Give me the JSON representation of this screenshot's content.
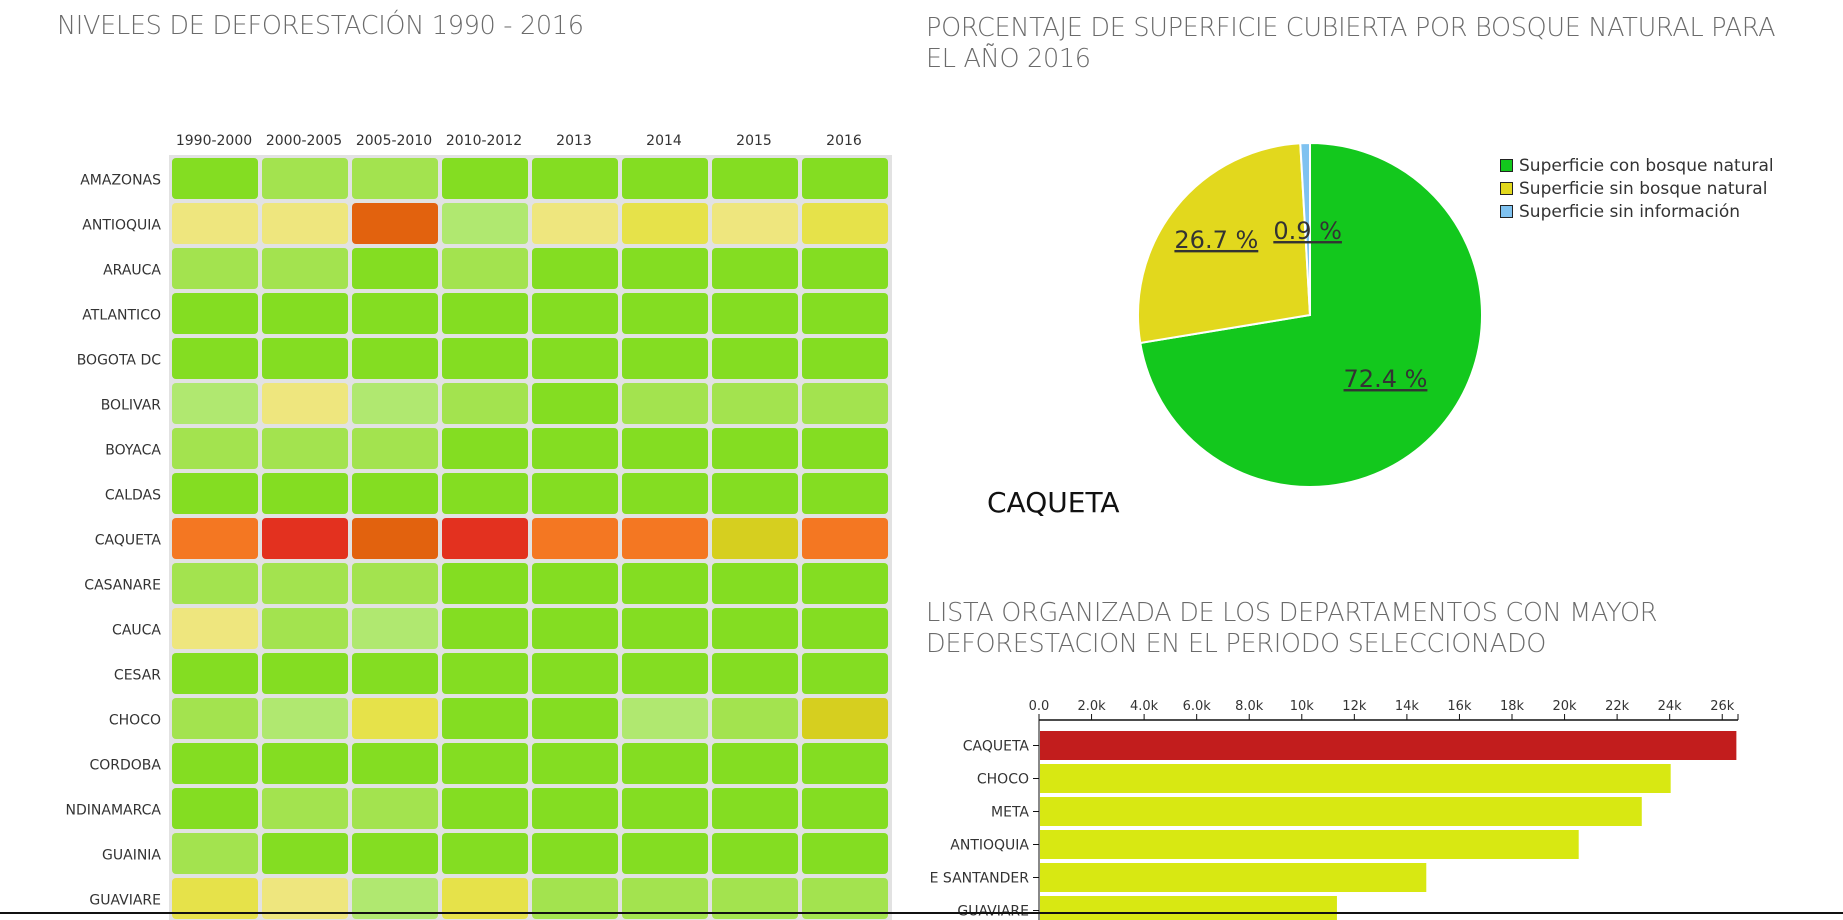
{
  "heatmap": {
    "title": "NIVELES DE DEFORESTACIÓN 1990 - 2016"
  },
  "pie": {
    "title": "PORCENTAJE DE SUPERFICIE CUBIERTA POR BOSQUE NATURAL PARA EL AÑO 2016",
    "department": "CAQUETA"
  },
  "bars": {
    "title": "LISTA ORGANIZADA DE LOS DEPARTAMENTOS CON MAYOR DEFORESTACION EN EL PERIODO SELECCIONADO"
  },
  "colors": {
    "green": "#84dd22",
    "light_green": "#a3e34f",
    "pale_green": "#b0e870",
    "pale_yellow": "#eee67e",
    "yellow": "#e6e24a",
    "olive_yellow": "#d6cf1f",
    "dark_orange": "#e2620e",
    "orange": "#f47722",
    "red": "#e3311f",
    "pie_green": "#13c81d",
    "pie_yellow": "#e2d81d",
    "pie_blue": "#7fc2f0",
    "bar_red": "#c21d1d",
    "bar_yellow": "#d8e812"
  },
  "chart_data": [
    {
      "type": "heatmap",
      "title": "NIVELES DE DEFORESTACIÓN 1990 - 2016",
      "columns": [
        "1990-2000",
        "2000-2005",
        "2005-2010",
        "2010-2012",
        "2013",
        "2014",
        "2015",
        "2016"
      ],
      "rows": [
        {
          "label": "AMAZONAS",
          "cells": [
            "green",
            "light_green",
            "light_green",
            "green",
            "green",
            "green",
            "green",
            "green"
          ]
        },
        {
          "label": "ANTIOQUIA",
          "cells": [
            "pale_yellow",
            "pale_yellow",
            "dark_orange",
            "pale_green",
            "pale_yellow",
            "yellow",
            "pale_yellow",
            "yellow"
          ]
        },
        {
          "label": "ARAUCA",
          "cells": [
            "light_green",
            "light_green",
            "green",
            "light_green",
            "green",
            "green",
            "green",
            "green"
          ]
        },
        {
          "label": "ATLANTICO",
          "cells": [
            "green",
            "green",
            "green",
            "green",
            "green",
            "green",
            "green",
            "green"
          ]
        },
        {
          "label": "BOGOTA DC",
          "cells": [
            "green",
            "green",
            "green",
            "green",
            "green",
            "green",
            "green",
            "green"
          ]
        },
        {
          "label": "BOLIVAR",
          "cells": [
            "pale_green",
            "pale_yellow",
            "pale_green",
            "light_green",
            "green",
            "light_green",
            "light_green",
            "light_green"
          ]
        },
        {
          "label": "BOYACA",
          "cells": [
            "light_green",
            "light_green",
            "light_green",
            "green",
            "green",
            "green",
            "green",
            "green"
          ]
        },
        {
          "label": "CALDAS",
          "cells": [
            "green",
            "green",
            "green",
            "green",
            "green",
            "green",
            "green",
            "green"
          ]
        },
        {
          "label": "CAQUETA",
          "cells": [
            "orange",
            "red",
            "dark_orange",
            "red",
            "orange",
            "orange",
            "olive_yellow",
            "orange"
          ]
        },
        {
          "label": "CASANARE",
          "cells": [
            "light_green",
            "light_green",
            "light_green",
            "green",
            "green",
            "green",
            "green",
            "green"
          ]
        },
        {
          "label": "CAUCA",
          "cells": [
            "pale_yellow",
            "light_green",
            "pale_green",
            "green",
            "green",
            "green",
            "green",
            "green"
          ]
        },
        {
          "label": "CESAR",
          "cells": [
            "green",
            "green",
            "green",
            "green",
            "green",
            "green",
            "green",
            "green"
          ]
        },
        {
          "label": "CHOCO",
          "cells": [
            "light_green",
            "pale_green",
            "yellow",
            "green",
            "green",
            "pale_green",
            "light_green",
            "olive_yellow"
          ]
        },
        {
          "label": "CORDOBA",
          "cells": [
            "green",
            "green",
            "green",
            "green",
            "green",
            "green",
            "green",
            "green"
          ]
        },
        {
          "label": "NDINAMARCA",
          "cells": [
            "green",
            "light_green",
            "light_green",
            "green",
            "green",
            "green",
            "green",
            "green"
          ]
        },
        {
          "label": "GUAINIA",
          "cells": [
            "light_green",
            "green",
            "green",
            "green",
            "green",
            "green",
            "green",
            "green"
          ]
        },
        {
          "label": "GUAVIARE",
          "cells": [
            "yellow",
            "pale_yellow",
            "pale_green",
            "yellow",
            "light_green",
            "light_green",
            "light_green",
            "light_green"
          ]
        }
      ]
    },
    {
      "type": "pie",
      "title": "PORCENTAJE DE SUPERFICIE CUBIERTA POR BOSQUE NATURAL PARA EL AÑO 2016",
      "labels": [
        "Superficie con bosque natural",
        "Superficie sin bosque natural",
        "Superficie sin información"
      ],
      "values": [
        72.4,
        26.7,
        0.9
      ],
      "value_labels": [
        "72.4 %",
        "26.7 %",
        "0.9 %"
      ],
      "colors": [
        "#13c81d",
        "#e2d81d",
        "#7fc2f0"
      ],
      "legend": "top-right"
    },
    {
      "type": "bar",
      "orientation": "horizontal",
      "title": "LISTA ORGANIZADA DE LOS DEPARTAMENTOS CON MAYOR DEFORESTACION EN EL PERIODO SELECCIONADO",
      "categories": [
        "CAQUETA",
        "CHOCO",
        "META",
        "ANTIOQUIA",
        "E SANTANDER",
        "GUAVIARE"
      ],
      "values": [
        26500,
        24000,
        22900,
        20500,
        14700,
        11300
      ],
      "colors": [
        "#c21d1d",
        "#d8e812",
        "#d8e812",
        "#d8e812",
        "#d8e812",
        "#d8e812"
      ],
      "xticks": [
        "0.0",
        "2.0k",
        "4.0k",
        "6.0k",
        "8.0k",
        "10k",
        "12k",
        "14k",
        "16k",
        "18k",
        "20k",
        "22k",
        "24k",
        "26k"
      ],
      "xlim": [
        0,
        26600
      ]
    }
  ]
}
